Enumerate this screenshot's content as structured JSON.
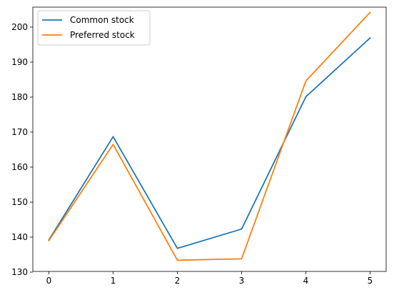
{
  "chart_data": {
    "type": "line",
    "x": [
      0,
      1,
      2,
      3,
      4,
      5
    ],
    "xticks": [
      "0",
      "1",
      "2",
      "3",
      "4",
      "5"
    ],
    "yticks": [
      "130",
      "140",
      "150",
      "160",
      "170",
      "180",
      "190",
      "200"
    ],
    "xlim": [
      -0.25,
      5.25
    ],
    "ylim": [
      130.2,
      205.7
    ],
    "grid": false,
    "legend_position": "top-left",
    "series": [
      {
        "name": "Common stock",
        "color": "#1f77b4",
        "values": [
          139.2,
          168.7,
          136.8,
          142.3,
          180.1,
          196.9
        ]
      },
      {
        "name": "Preferred stock",
        "color": "#ff7f0e",
        "values": [
          139.0,
          166.5,
          133.4,
          133.8,
          184.6,
          204.2
        ]
      }
    ]
  }
}
